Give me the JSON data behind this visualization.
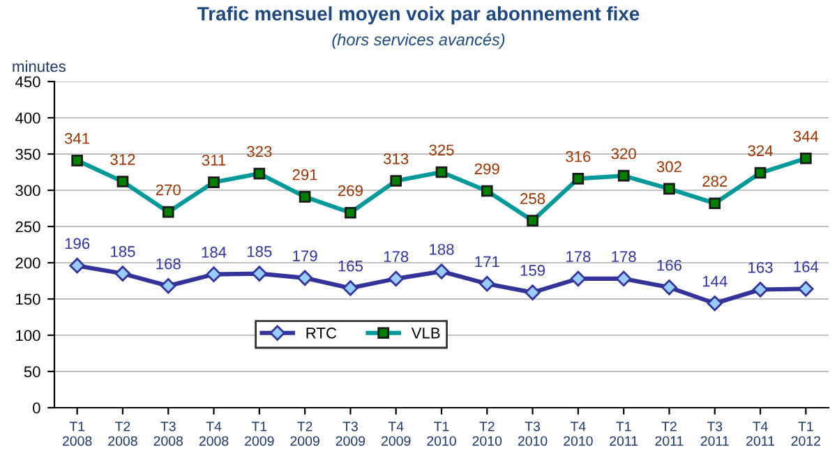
{
  "chart_data": {
    "type": "line",
    "title": "Trafic mensuel moyen voix par abonnement fixe",
    "subtitle": "(hors services avancés)",
    "ylabel": "minutes",
    "categories": [
      "T1\n2008",
      "T2\n2008",
      "T3\n2008",
      "T4\n2008",
      "T1\n2009",
      "T2\n2009",
      "T3\n2009",
      "T4\n2009",
      "T1\n2010",
      "T2\n2010",
      "T3\n2010",
      "T4\n2010",
      "T1\n2011",
      "T2\n2011",
      "T3\n2011",
      "T4\n2011",
      "T1\n2012"
    ],
    "series": [
      {
        "name": "RTC",
        "color": "#333399",
        "marker": "diamond",
        "values": [
          196,
          185,
          168,
          184,
          185,
          179,
          165,
          178,
          188,
          171,
          159,
          178,
          178,
          166,
          144,
          163,
          164
        ]
      },
      {
        "name": "VLB",
        "color": "#009999",
        "marker": "square",
        "values": [
          341,
          312,
          270,
          311,
          323,
          291,
          269,
          313,
          325,
          299,
          258,
          316,
          320,
          302,
          282,
          324,
          344
        ]
      }
    ],
    "ylim": [
      0,
      450
    ],
    "yticks": [
      0,
      50,
      100,
      150,
      200,
      250,
      300,
      350,
      400,
      450
    ],
    "grid": "y",
    "legend": "bottom left",
    "data_labels": true,
    "line_style": "solid"
  }
}
